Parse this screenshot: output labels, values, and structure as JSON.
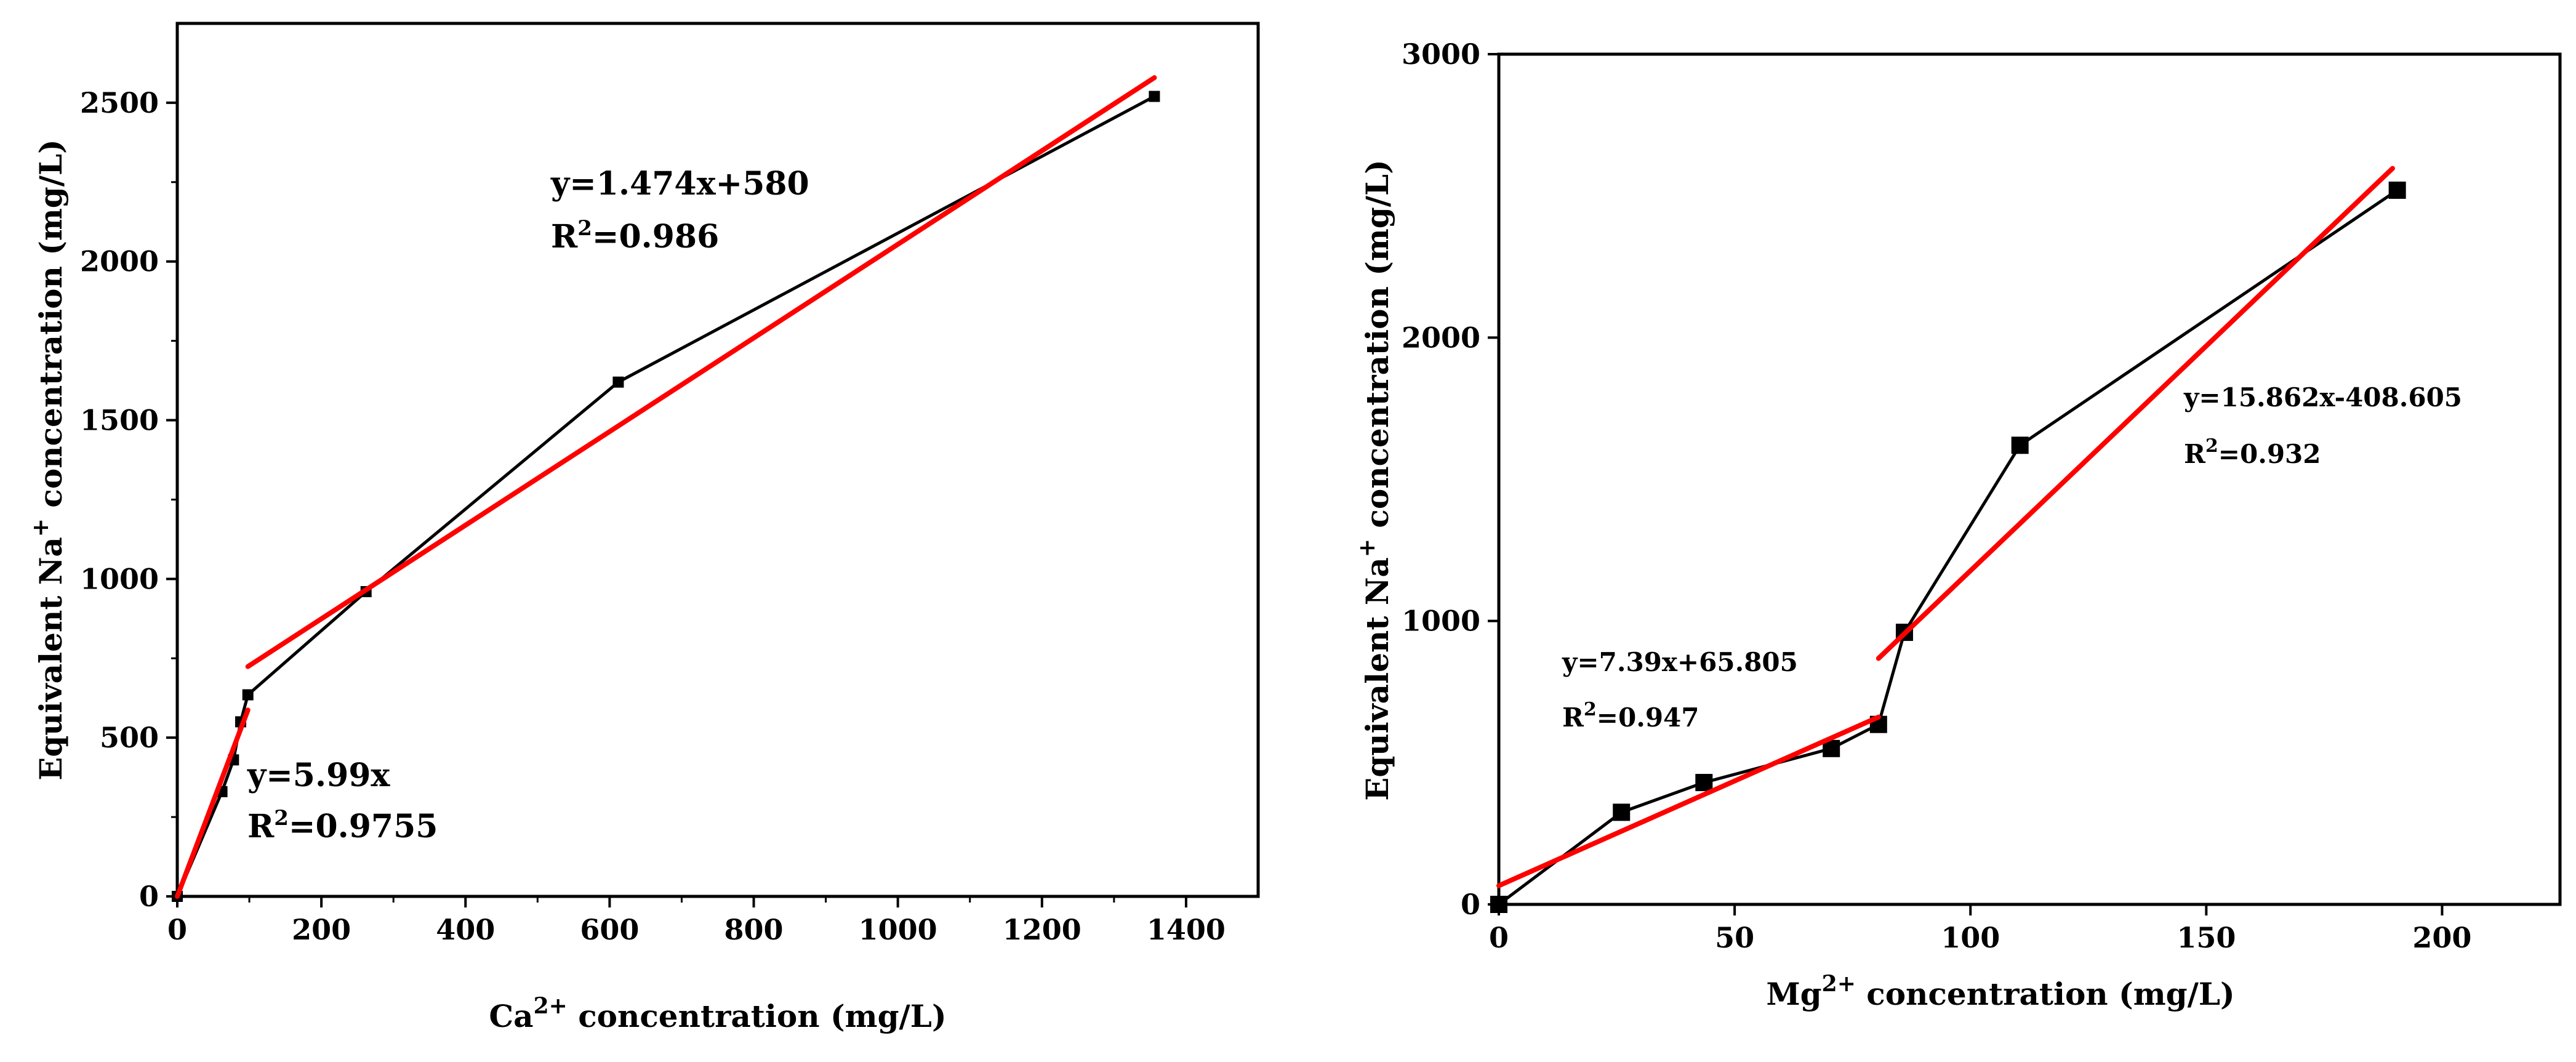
{
  "chart_data": [
    {
      "type": "scatter",
      "title": "",
      "xlabel": {
        "base": "Ca",
        "sup": "2+",
        "rest": " concentration (mg/L)"
      },
      "ylabel": {
        "base": "Equivalent Na",
        "sup": "+",
        "rest": " concentration (mg/L)"
      },
      "xlim": [
        0,
        1500
      ],
      "ylim": [
        0,
        2750
      ],
      "xticks": [
        0,
        200,
        400,
        600,
        800,
        1000,
        1200,
        1400
      ],
      "yticks": [
        0,
        500,
        1000,
        1500,
        2000,
        2500
      ],
      "series": [
        {
          "name": "data",
          "style": "line-marker",
          "color": "#000000",
          "x": [
            0,
            62,
            78,
            88,
            98,
            262,
            612,
            1356
          ],
          "y": [
            0,
            330,
            430,
            550,
            635,
            960,
            1620,
            2520
          ]
        }
      ],
      "fits": [
        {
          "name": "fit-1",
          "color": "#ff0000",
          "x": [
            0,
            98
          ],
          "y": [
            0,
            587
          ]
        },
        {
          "name": "fit-2",
          "color": "#ff0000",
          "x": [
            98,
            1356
          ],
          "y": [
            724,
            2579
          ]
        }
      ],
      "annotations": [
        {
          "name": "eq-upper",
          "line1": "y=1.474x+580",
          "r2_prefix": "R",
          "r2_sup": "2",
          "r2_value": "=0.986"
        },
        {
          "name": "eq-lower",
          "line1": "y=5.99x",
          "r2_prefix": "R",
          "r2_sup": "2",
          "r2_value": "=0.9755"
        }
      ]
    },
    {
      "type": "scatter",
      "title": "",
      "xlabel": {
        "base": "Mg",
        "sup": "2+",
        "rest": " concentration (mg/L)"
      },
      "ylabel": {
        "base": "Equivalent Na",
        "sup": "+",
        "rest": " concentration (mg/L)"
      },
      "xlim": [
        0,
        225
      ],
      "ylim": [
        0,
        3000
      ],
      "xticks": [
        0,
        50,
        100,
        150,
        200
      ],
      "yticks": [
        0,
        1000,
        2000,
        3000
      ],
      "series": [
        {
          "name": "data",
          "style": "line-marker",
          "color": "#000000",
          "x": [
            0,
            26,
            43.5,
            70.5,
            80.5,
            86,
            110.5,
            190.5
          ],
          "y": [
            0,
            325,
            430,
            550,
            635,
            960,
            1620,
            2520
          ]
        }
      ],
      "fits": [
        {
          "name": "fit-1",
          "color": "#ff0000",
          "x": [
            0,
            80.5
          ],
          "y": [
            66,
            661
          ]
        },
        {
          "name": "fit-2",
          "color": "#ff0000",
          "x": [
            80.5,
            189.5
          ],
          "y": [
            868,
            2597
          ]
        }
      ],
      "annotations": [
        {
          "name": "eq-upper",
          "line1": "y=15.862x-408.605",
          "r2_prefix": "R",
          "r2_sup": "2",
          "r2_value": "=0.932"
        },
        {
          "name": "eq-lower",
          "line1": "y=7.39x+65.805",
          "r2_prefix": "R",
          "r2_sup": "2",
          "r2_value": "=0.947"
        }
      ]
    }
  ]
}
